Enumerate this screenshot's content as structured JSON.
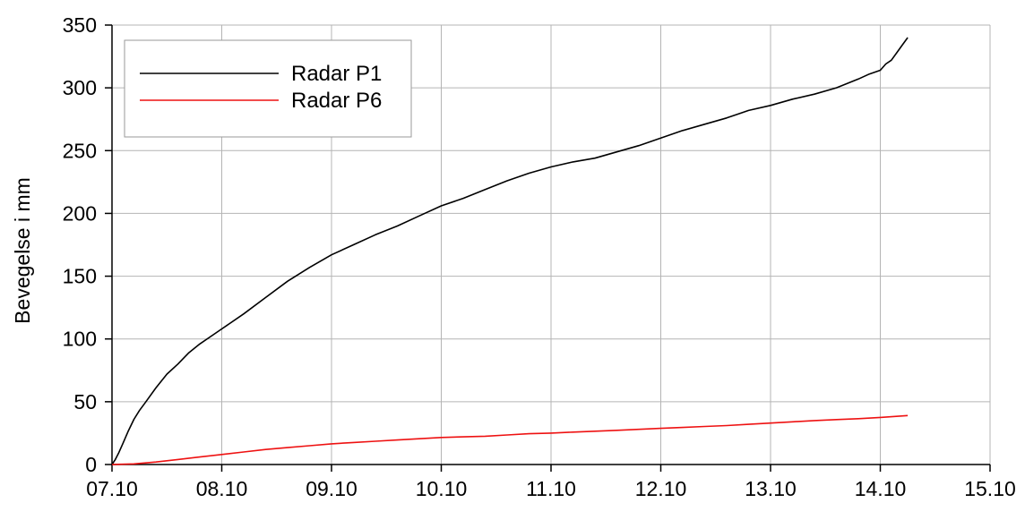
{
  "chart_data": {
    "type": "line",
    "title": "",
    "xlabel": "",
    "ylabel": "Bevegelse i mm",
    "x_ticks": [
      "07.10",
      "08.10",
      "09.10",
      "10.10",
      "11.10",
      "12.10",
      "13.10",
      "14.10",
      "15.10"
    ],
    "y_ticks": [
      0,
      50,
      100,
      150,
      200,
      250,
      300,
      350
    ],
    "xlim": [
      0,
      8
    ],
    "ylim": [
      0,
      350
    ],
    "grid": true,
    "legend": "top-left",
    "series": [
      {
        "name": "Radar P1",
        "color": "#000000",
        "x": [
          0.0,
          0.03,
          0.06,
          0.1,
          0.15,
          0.2,
          0.25,
          0.3,
          0.4,
          0.5,
          0.6,
          0.7,
          0.8,
          0.9,
          1.0,
          1.2,
          1.4,
          1.6,
          1.8,
          2.0,
          2.2,
          2.4,
          2.6,
          2.8,
          3.0,
          3.2,
          3.4,
          3.6,
          3.8,
          4.0,
          4.2,
          4.4,
          4.6,
          4.8,
          5.0,
          5.2,
          5.4,
          5.6,
          5.8,
          6.0,
          6.2,
          6.4,
          6.6,
          6.8,
          6.9,
          7.0,
          7.05,
          7.1,
          7.15,
          7.2,
          7.25
        ],
        "values": [
          0,
          4,
          9,
          17,
          27,
          36,
          43,
          49,
          61,
          72,
          80,
          89,
          96,
          102,
          108,
          120,
          133,
          146,
          157,
          167,
          175,
          183,
          190,
          198,
          206,
          212,
          219,
          226,
          232,
          237,
          241,
          244,
          249,
          254,
          260,
          266,
          271,
          276,
          282,
          286,
          291,
          295,
          300,
          307,
          311,
          314,
          319,
          322,
          328,
          334,
          340
        ]
      },
      {
        "name": "Radar P6",
        "color": "#ee1111",
        "x": [
          0.0,
          0.2,
          0.4,
          0.6,
          0.8,
          1.0,
          1.2,
          1.4,
          1.6,
          1.8,
          2.0,
          2.2,
          2.4,
          2.6,
          2.8,
          3.0,
          3.2,
          3.4,
          3.6,
          3.8,
          4.0,
          4.2,
          4.4,
          4.6,
          4.8,
          5.0,
          5.2,
          5.4,
          5.6,
          5.8,
          6.0,
          6.2,
          6.4,
          6.6,
          6.8,
          7.0,
          7.25
        ],
        "values": [
          0,
          0.5,
          2,
          4,
          6,
          8,
          10,
          12,
          13.5,
          15,
          16.5,
          17.5,
          18.5,
          19.5,
          20.5,
          21.5,
          22,
          22.5,
          23.5,
          24.5,
          25,
          25.8,
          26.5,
          27.2,
          28,
          28.8,
          29.5,
          30.3,
          31,
          32,
          33,
          34,
          35,
          35.8,
          36.5,
          37.5,
          39
        ]
      }
    ]
  }
}
